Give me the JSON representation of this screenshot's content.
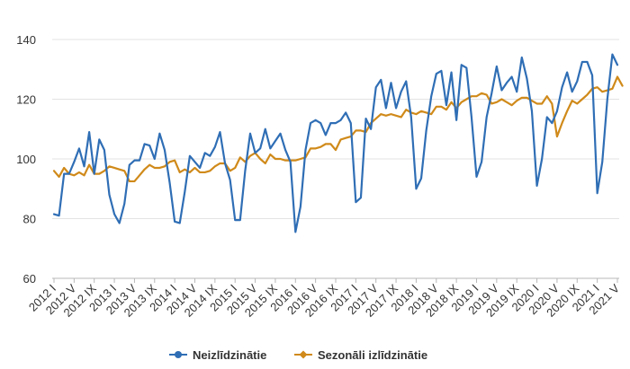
{
  "chart_data": {
    "type": "line",
    "title": "",
    "xlabel": "",
    "ylabel": "",
    "ylim": [
      60,
      140
    ],
    "yticks": [
      60,
      80,
      100,
      120,
      140
    ],
    "grid": true,
    "legend_position": "bottom-center",
    "x_labels": [
      "2012 I",
      "2012 V",
      "2012 IX",
      "2013 I",
      "2013 V",
      "2013 IX",
      "2014 I",
      "2014 V",
      "2014 IX",
      "2015 I",
      "2015 V",
      "2015 IX",
      "2016 I",
      "2016 V",
      "2016 IX",
      "2017 I",
      "2017 V",
      "2017 IX",
      "2018 I",
      "2018 V",
      "2018 IX",
      "2019 I",
      "2019 V",
      "2019 IX",
      "2020 I",
      "2020 V",
      "2020 IX",
      "2021 I",
      "2021 V"
    ],
    "series": [
      {
        "name": "Neizlīdzinātie",
        "color": "#2f6eb5",
        "values": [
          81.5,
          81,
          95,
          95,
          99,
          103.5,
          97.5,
          109,
          95,
          106.5,
          103,
          88,
          81.5,
          78.5,
          85,
          98,
          99.5,
          99.5,
          105,
          104.5,
          100,
          108.5,
          103,
          92,
          79,
          78.5,
          89,
          101,
          99,
          97,
          102,
          101,
          104,
          109,
          98.5,
          93,
          79.5,
          79.5,
          96,
          108.5,
          102,
          103.5,
          110,
          103.5,
          106,
          108.5,
          103,
          99,
          75.5,
          84,
          103,
          112,
          113,
          112,
          108,
          112,
          112,
          113,
          115.5,
          112,
          85.5,
          87,
          113.5,
          110,
          124,
          126.5,
          117,
          125.5,
          117,
          122.5,
          126,
          114,
          90,
          93.5,
          109.5,
          121,
          128.5,
          129.5,
          118,
          129,
          113,
          131.5,
          130.5,
          114,
          94,
          99,
          114,
          122,
          131,
          123,
          125.5,
          127.5,
          122.5,
          134,
          127,
          116,
          91,
          100,
          114,
          112,
          116,
          124,
          129,
          122.5,
          126,
          132.5,
          132.5,
          128,
          88.5,
          99,
          120,
          135,
          131.5
        ]
      },
      {
        "name": "Sezonāli izlīdzinātie",
        "color": "#d08a1a",
        "values": [
          96,
          94,
          97,
          95,
          94.5,
          95.5,
          94.5,
          98,
          95,
          95,
          96,
          97.5,
          97,
          96.5,
          96,
          92.5,
          92.5,
          94.5,
          96.5,
          98,
          97,
          97,
          97.5,
          99,
          99.5,
          95.5,
          96.5,
          95.5,
          97,
          95.5,
          95.5,
          96,
          97.5,
          98.5,
          98.5,
          96,
          97,
          100.5,
          99,
          101,
          102,
          100,
          98.5,
          101.5,
          100,
          100,
          99.5,
          99.5,
          99.5,
          100,
          100.5,
          103.5,
          103.5,
          104,
          105,
          105,
          103,
          106.5,
          107,
          107.5,
          109.5,
          109.5,
          109,
          112,
          113.5,
          115,
          114.5,
          115,
          114.5,
          114,
          116.5,
          115.5,
          115,
          116,
          115.5,
          115,
          117.5,
          117.5,
          116.5,
          119,
          117,
          119,
          120,
          121,
          121,
          122,
          121.5,
          118.5,
          119,
          120,
          119,
          118,
          119.5,
          120.5,
          120.5,
          119.5,
          118.5,
          118.5,
          121,
          118.5,
          107.5,
          112,
          116,
          119.5,
          118.5,
          120,
          121.5,
          123.5,
          124,
          122.5,
          123,
          123.5,
          127.5,
          124.5
        ]
      }
    ]
  }
}
